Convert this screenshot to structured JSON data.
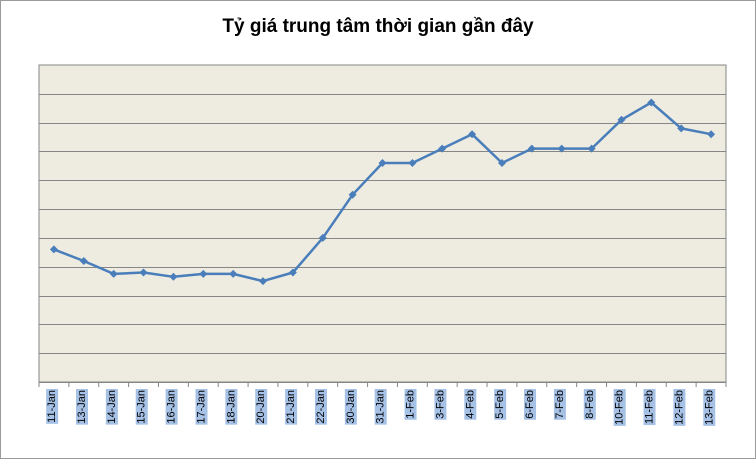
{
  "chart_data": {
    "type": "line",
    "title": "Tỷ giá trung tâm thời gian gần đây",
    "xlabel": "",
    "ylabel": "",
    "categories": [
      "11-Jan",
      "13-Jan",
      "14-Jan",
      "15-Jan",
      "16-Jan",
      "17-Jan",
      "18-Jan",
      "20-Jan",
      "21-Jan",
      "22-Jan",
      "30-Jan",
      "31-Jan",
      "1-Feb",
      "3-Feb",
      "4-Feb",
      "5-Feb",
      "6-Feb",
      "7-Feb",
      "8-Feb",
      "10-Feb",
      "11-Feb",
      "12-Feb",
      "13-Feb"
    ],
    "series": [
      {
        "values": [
          4.6,
          4.2,
          3.75,
          3.8,
          3.65,
          3.75,
          3.75,
          3.5,
          3.8,
          5.0,
          6.5,
          7.6,
          7.6,
          8.1,
          8.6,
          7.6,
          8.1,
          8.1,
          8.1,
          9.1,
          9.7,
          8.8,
          8.6
        ]
      }
    ],
    "ylim": [
      0,
      11
    ],
    "y_gridlines": 11,
    "grid": true,
    "y_tick_labels_visible": false,
    "legend": "none",
    "colors": {
      "line": "#4a7ebb",
      "plot_background": "#eeece1",
      "gridline": "#868686",
      "tick_label_highlight": "#a6c1e6"
    }
  }
}
